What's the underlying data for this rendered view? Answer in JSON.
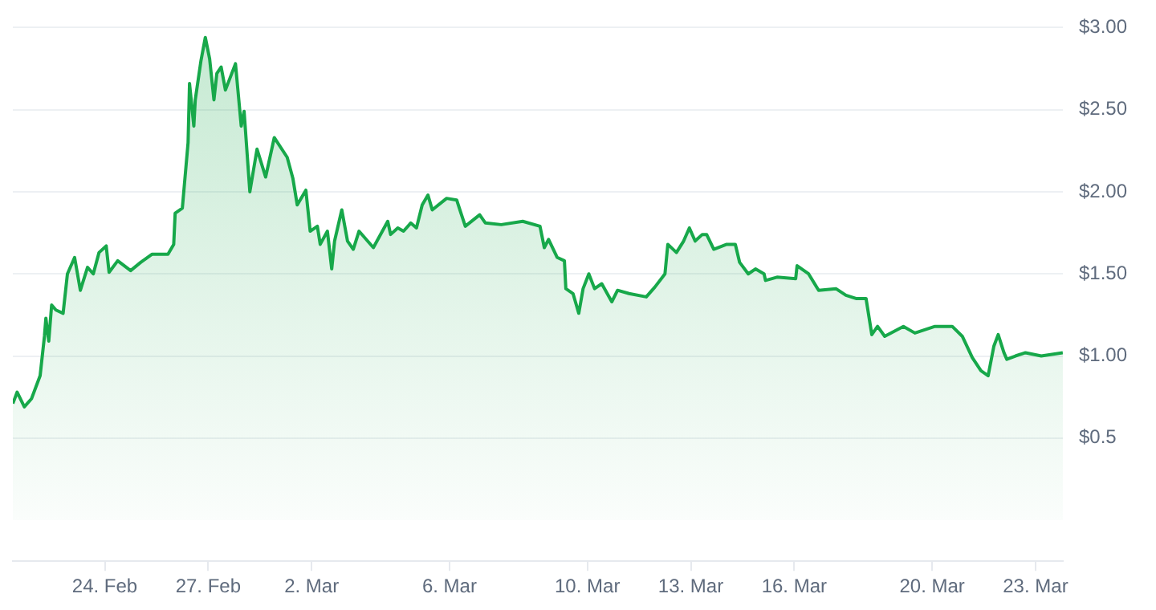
{
  "chart_data": {
    "type": "area",
    "color": "#17a84a",
    "x": [
      "--02-21T08:00",
      "--02-21T11:00",
      "--02-21T16:00",
      "--02-21T21:00",
      "--02-22T03:00",
      "--02-22T06:00",
      "--02-22T07:00",
      "--02-22T09:00",
      "--02-22T11:00",
      "--02-22T14:00",
      "--02-22T19:00",
      "--02-22T22:00",
      "--02-23T03:00",
      "--02-23T07:00",
      "--02-23T12:00",
      "--02-23T16:00",
      "--02-23T20:00",
      "--02-24T01:00",
      "--02-24T03:00",
      "--02-24T09:00",
      "--02-24T18:00",
      "--02-25T01:00",
      "--02-25T09:00",
      "--02-25T20:00",
      "--02-26T00:00",
      "--02-26T01:00",
      "--02-26T06:00",
      "--02-26T10:00",
      "--02-26T11:00",
      "--02-26T14:00",
      "--02-26T15:00",
      "--02-26T19:00",
      "--02-26T22:00",
      "--02-27T01:00",
      "--02-27T04:00",
      "--02-27T06:00",
      "--02-27T09:00",
      "--02-27T12:00",
      "--02-27T19:00",
      "--02-27T23:00",
      "--02-28T01:00",
      "--02-28T05:00",
      "--02-28T10:00",
      "--02-28T16:00",
      "--02-28T22:00",
      "--03-01T07:00",
      "--03-01T11:00",
      "--03-01T14:00",
      "--03-01T20:00",
      "--03-01T23:00",
      "--03-02T04:00",
      "--03-02T06:00",
      "--03-02T11:00",
      "--03-02T14:00",
      "--03-02T16:00",
      "--03-02T21:00",
      "--03-03T01:00",
      "--03-03T05:00",
      "--03-03T09:00",
      "--03-03T19:00",
      "--03-04T05:00",
      "--03-04T07:00",
      "--03-04T12:00",
      "--03-04T16:00",
      "--03-04T21:00",
      "--03-05T01:00",
      "--03-05T05:00",
      "--03-05T09:00",
      "--03-05T12:00",
      "--03-05T22:00",
      "--03-06T05:00",
      "--03-06T08:00",
      "--03-06T11:00",
      "--03-06T21:00",
      "--03-07T01:00",
      "--03-07T12:00",
      "--03-08T03:00",
      "--03-08T15:00",
      "--03-08T18:00",
      "--03-08T21:00",
      "--03-09T03:00",
      "--03-09T08:00",
      "--03-09T09:00",
      "--03-09T14:00",
      "--03-09T18:00",
      "--03-09T21:00",
      "--03-10T01:00",
      "--03-10T05:00",
      "--03-10T10:00",
      "--03-10T17:00",
      "--03-10T21:00",
      "--03-11T05:00",
      "--03-11T17:00",
      "--03-11T23:00",
      "--03-12T06:00",
      "--03-12T08:00",
      "--03-12T14:00",
      "--03-12T19:00",
      "--03-12T23:00",
      "--03-13T03:00",
      "--03-13T08:00",
      "--03-13T11:00",
      "--03-13T16:00",
      "--03-14T01:00",
      "--03-14T07:00",
      "--03-14T10:00",
      "--03-14T16:00",
      "--03-14T21:00",
      "--03-15T03:00",
      "--03-15T04:00",
      "--03-15T12:00",
      "--03-16T01:00",
      "--03-16T02:00",
      "--03-16T10:00",
      "--03-16T17:00",
      "--03-17T05:00",
      "--03-17T12:00",
      "--03-17T19:00",
      "--03-18T02:00",
      "--03-18T06:00",
      "--03-18T10:00",
      "--03-18T15:00",
      "--03-19T04:00",
      "--03-19T12:00",
      "--03-20T02:00",
      "--03-20T14:00",
      "--03-20T21:00",
      "--03-21T04:00",
      "--03-21T10:00",
      "--03-21T15:00",
      "--03-21T19:00",
      "--03-21T22:00",
      "--03-22T02:00",
      "--03-22T04:00",
      "--03-22T10:00",
      "--03-22T17:00",
      "--03-23T04:00",
      "--03-23T19:00"
    ],
    "values": [
      0.71,
      0.78,
      0.69,
      0.74,
      0.88,
      1.12,
      1.23,
      1.09,
      1.31,
      1.28,
      1.26,
      1.5,
      1.6,
      1.4,
      1.54,
      1.5,
      1.63,
      1.67,
      1.51,
      1.58,
      1.52,
      1.57,
      1.62,
      1.62,
      1.68,
      1.87,
      1.9,
      2.3,
      2.66,
      2.4,
      2.56,
      2.8,
      2.94,
      2.81,
      2.56,
      2.72,
      2.76,
      2.62,
      2.78,
      2.4,
      2.49,
      2.0,
      2.26,
      2.09,
      2.33,
      2.21,
      2.08,
      1.92,
      2.01,
      1.76,
      1.79,
      1.68,
      1.76,
      1.53,
      1.7,
      1.89,
      1.7,
      1.65,
      1.76,
      1.66,
      1.82,
      1.74,
      1.78,
      1.76,
      1.81,
      1.78,
      1.92,
      1.98,
      1.89,
      1.96,
      1.95,
      1.87,
      1.79,
      1.86,
      1.81,
      1.8,
      1.82,
      1.79,
      1.66,
      1.71,
      1.6,
      1.58,
      1.41,
      1.38,
      1.26,
      1.41,
      1.5,
      1.41,
      1.44,
      1.33,
      1.4,
      1.38,
      1.36,
      1.42,
      1.5,
      1.68,
      1.63,
      1.7,
      1.78,
      1.7,
      1.74,
      1.74,
      1.65,
      1.68,
      1.68,
      1.57,
      1.5,
      1.53,
      1.5,
      1.46,
      1.48,
      1.47,
      1.55,
      1.5,
      1.4,
      1.41,
      1.37,
      1.35,
      1.35,
      1.13,
      1.18,
      1.12,
      1.18,
      1.14,
      1.18,
      1.18,
      1.12,
      0.99,
      0.91,
      0.88,
      1.06,
      1.13,
      1.02,
      0.98,
      1.0,
      1.02,
      1.0,
      1.02
    ],
    "xlim": [
      "--02-21T08:00",
      "--03-23T19:00"
    ],
    "xticks": [
      {
        "value": "--02-24",
        "label": "24. Feb"
      },
      {
        "value": "--02-27",
        "label": "27. Feb"
      },
      {
        "value": "--03-02",
        "label": "2. Mar"
      },
      {
        "value": "--03-06",
        "label": "6. Mar"
      },
      {
        "value": "--03-10",
        "label": "10. Mar"
      },
      {
        "value": "--03-13",
        "label": "13. Mar"
      },
      {
        "value": "--03-16",
        "label": "16. Mar"
      },
      {
        "value": "--03-20",
        "label": "20. Mar"
      },
      {
        "value": "--03-23",
        "label": "23. Mar"
      }
    ],
    "ylim": [
      -0.25,
      3
    ],
    "yticks": [
      {
        "value": 0.5,
        "label": "$0.5"
      },
      {
        "value": 1,
        "label": "$1.00"
      },
      {
        "value": 1.5,
        "label": "$1.50"
      },
      {
        "value": 2,
        "label": "$2.00"
      },
      {
        "value": 2.5,
        "label": "$2.50"
      },
      {
        "value": 3,
        "label": "$3.00"
      }
    ],
    "grid": "y"
  }
}
